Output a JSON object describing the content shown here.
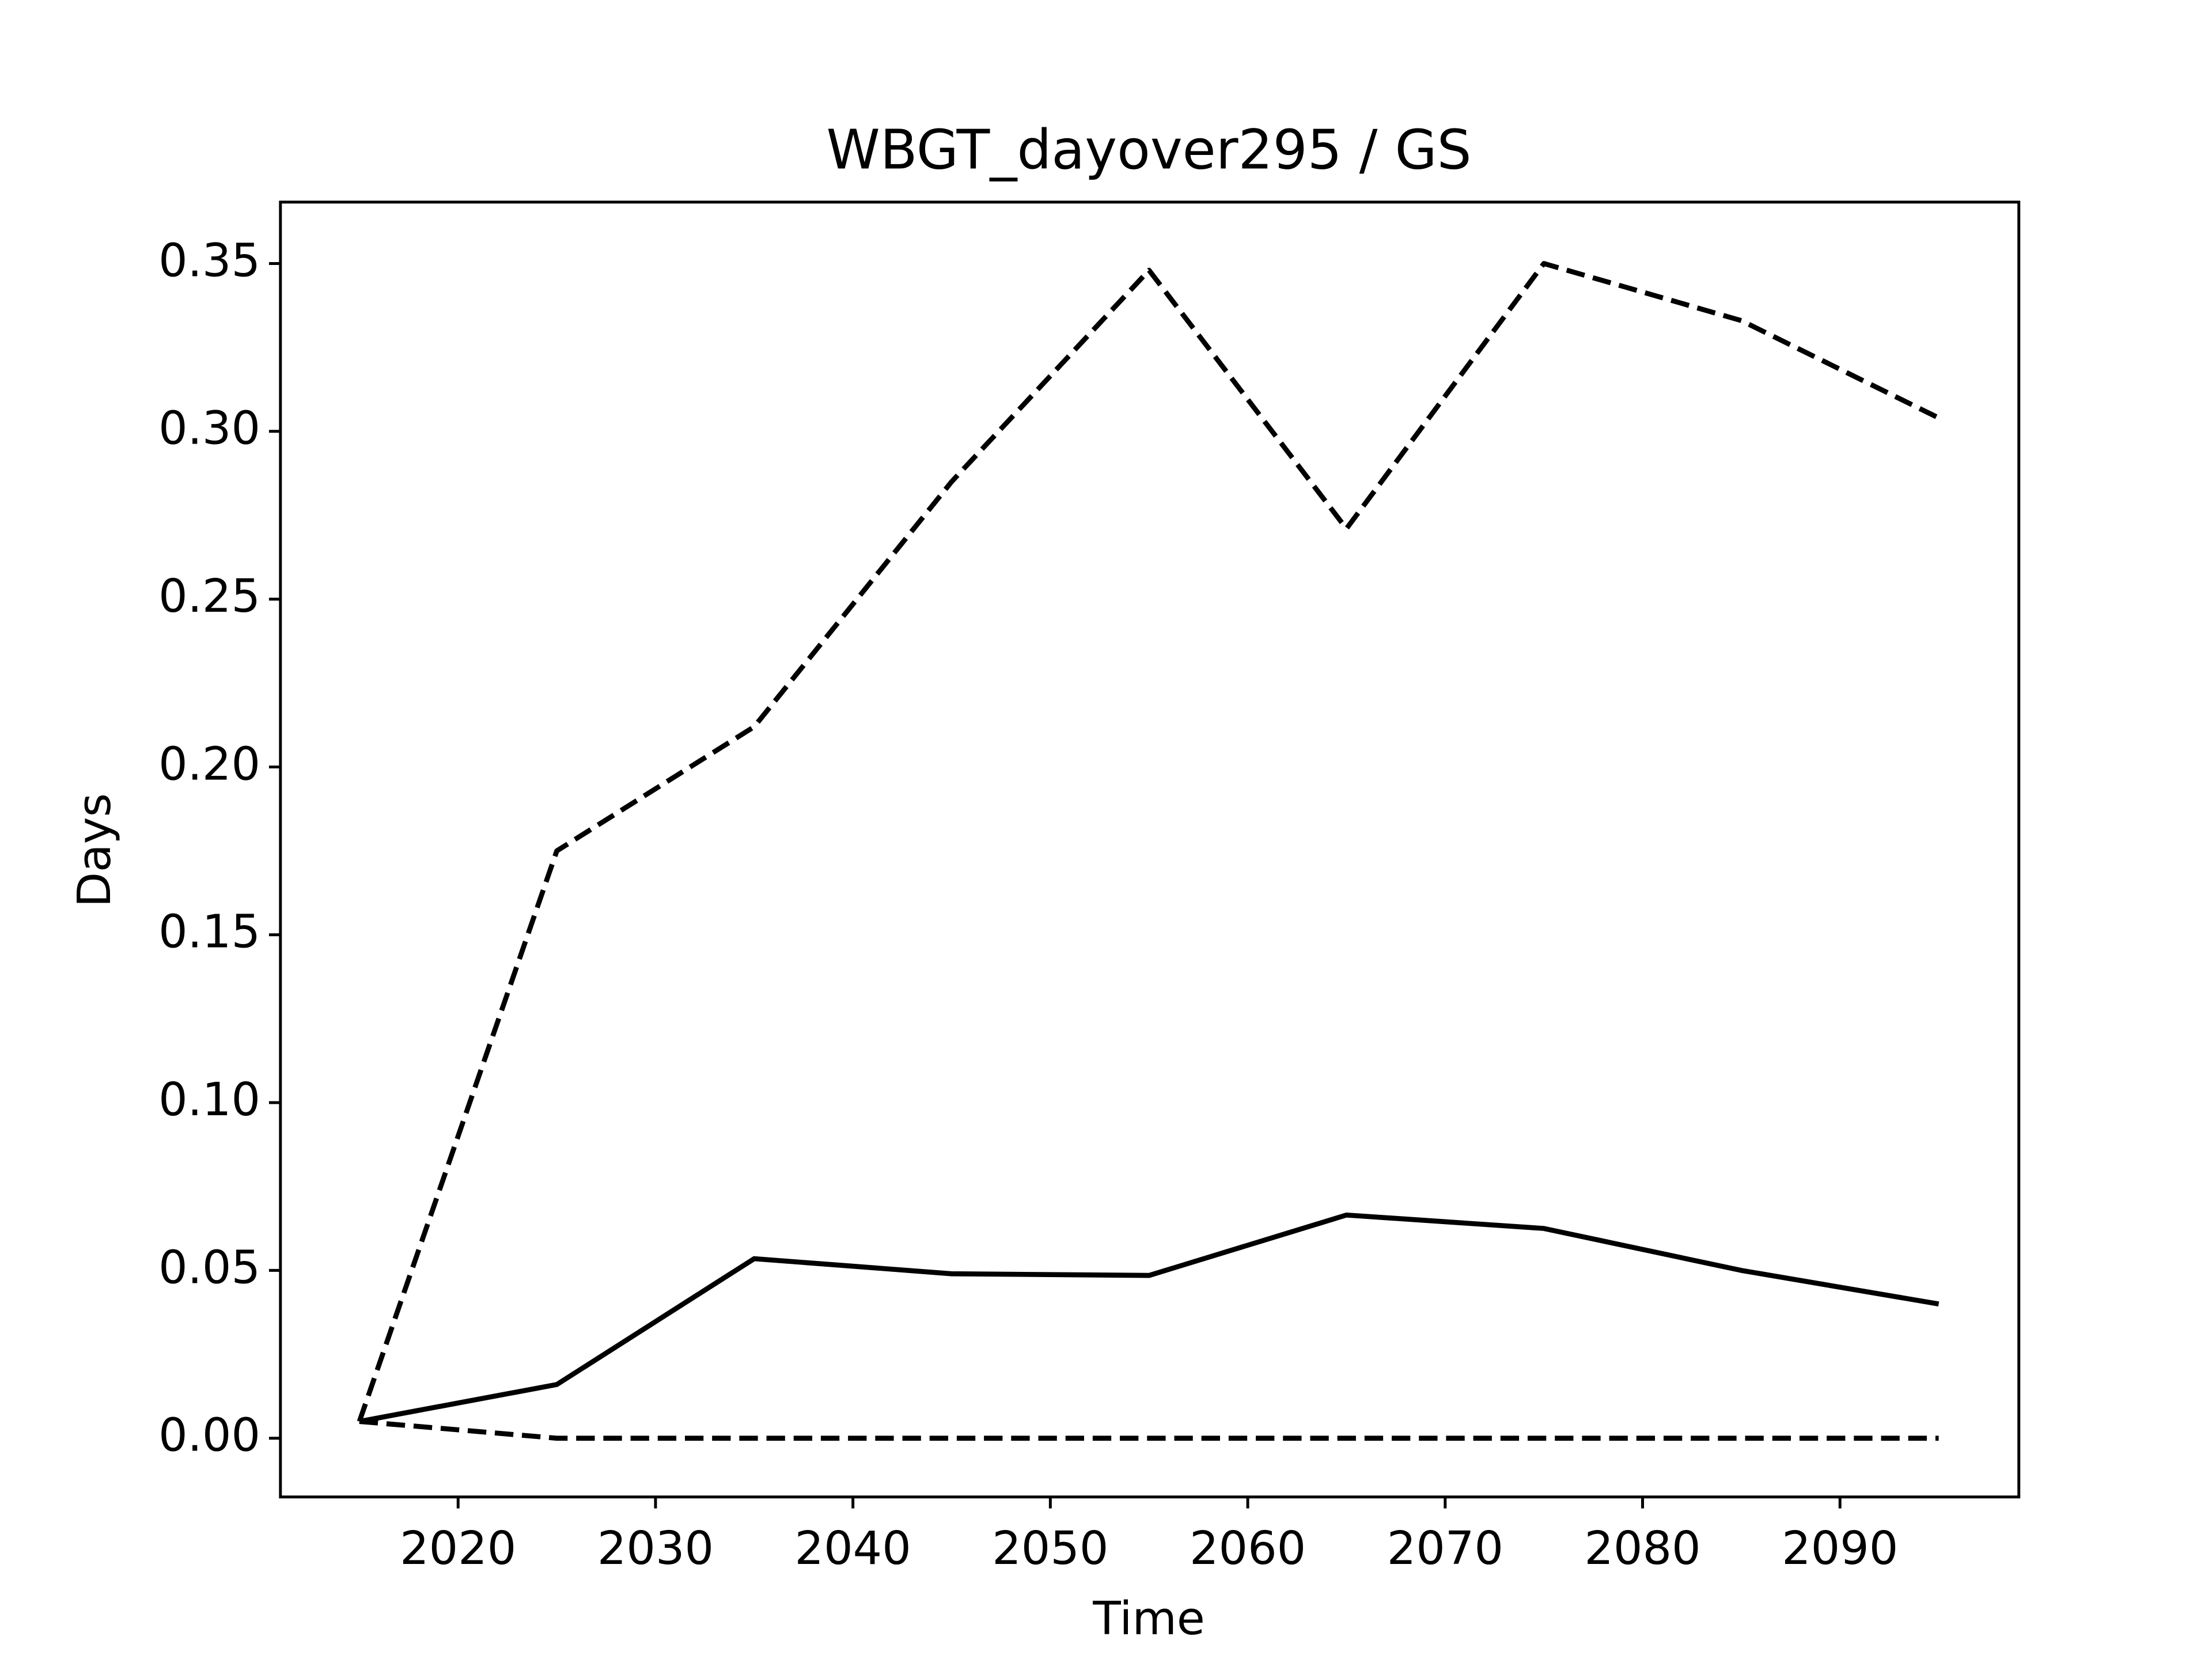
{
  "chart_data": {
    "type": "line",
    "title": "WBGT_dayover295 / GS",
    "x_label": "Time",
    "y_label": "Days",
    "x": [
      2015,
      2025,
      2035,
      2045,
      2055,
      2065,
      2075,
      2085,
      2095
    ],
    "series": [
      {
        "color": "#000000",
        "linestyle": "solid",
        "values": [
          0.005,
          0.016,
          0.0535,
          0.049,
          0.0485,
          0.0665,
          0.0625,
          0.05,
          0.04
        ]
      },
      {
        "color": "#000000",
        "linestyle": "dashed",
        "values": [
          0.005,
          0.175,
          0.212,
          0.285,
          0.348,
          0.271,
          0.35,
          0.333,
          0.304
        ]
      },
      {
        "color": "#000000",
        "linestyle": "dashed",
        "values": [
          0.005,
          0,
          0,
          0,
          0,
          0,
          0,
          0,
          0
        ]
      }
    ],
    "xlim": [
      2011,
      2099.06
    ],
    "ylim": [
      -0.0175,
      0.3683
    ],
    "xticks": [
      2020,
      2030,
      2040,
      2050,
      2060,
      2070,
      2080,
      2090
    ],
    "yticks": [
      {
        "value": 0,
        "label": "0.00"
      },
      {
        "value": 0.05,
        "label": "0.05"
      },
      {
        "value": 0.1,
        "label": "0.10"
      },
      {
        "value": 0.15,
        "label": "0.15"
      },
      {
        "value": 0.2,
        "label": "0.20"
      },
      {
        "value": 0.25,
        "label": "0.25"
      },
      {
        "value": 0.3,
        "label": "0.30"
      },
      {
        "value": 0.35,
        "label": "0.35"
      }
    ]
  }
}
